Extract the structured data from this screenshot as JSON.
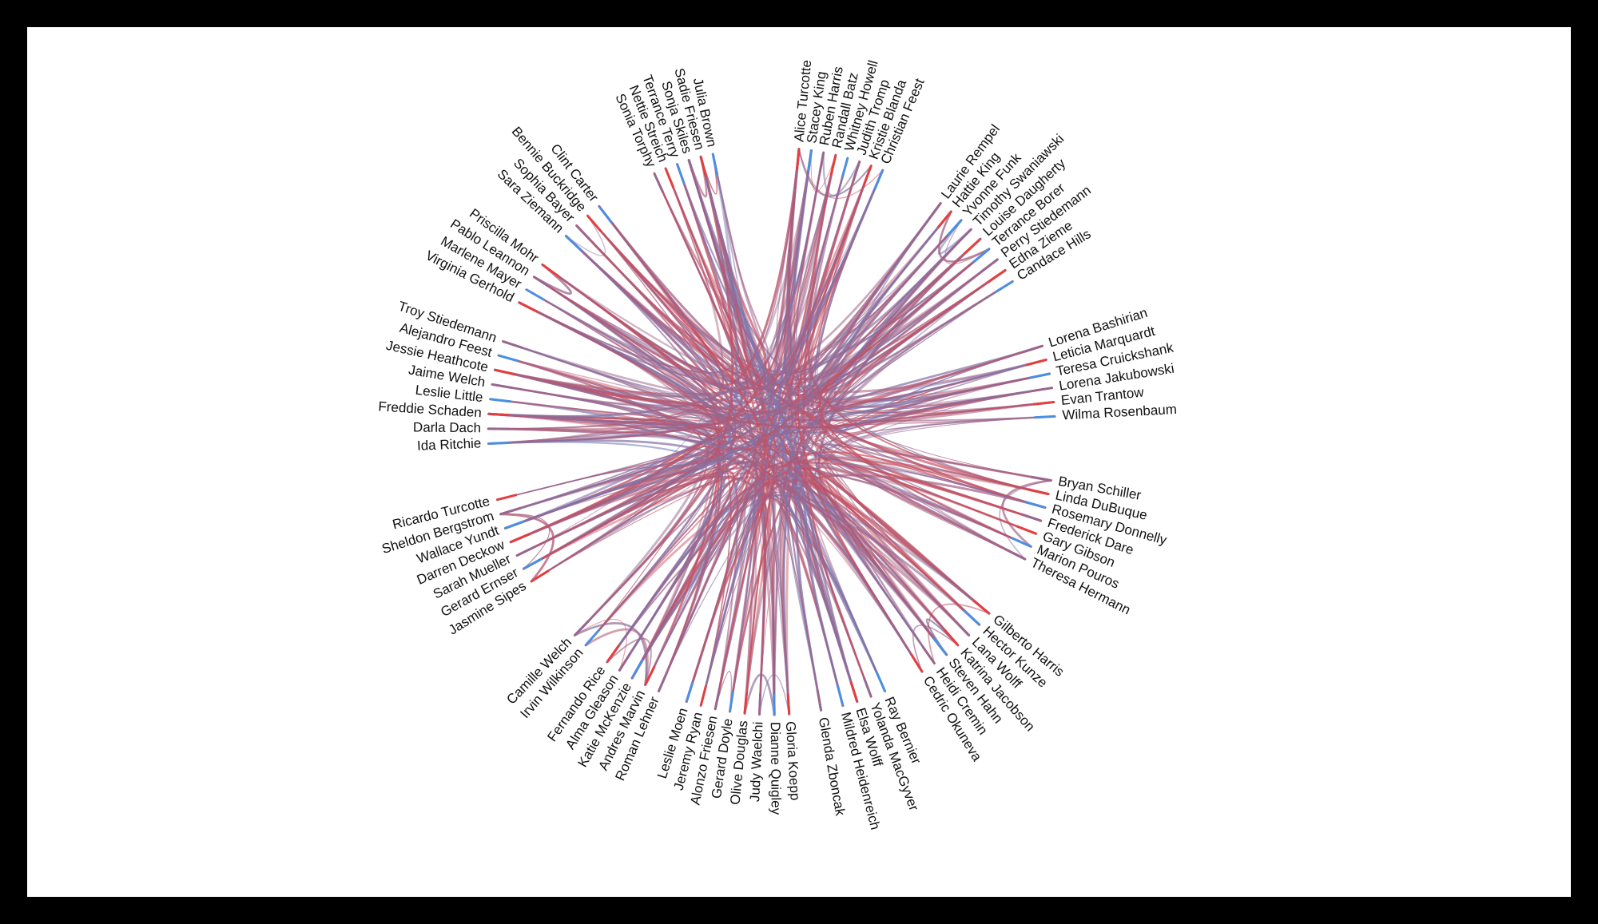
{
  "diagram": {
    "type": "hierarchical edge bundling",
    "colors": {
      "source": "#4a90e2",
      "target": "#e53e3e",
      "background": "#ffffff",
      "frame": "#000000"
    },
    "nodes": [
      "Alice Turcotte",
      "Stacey King",
      "Ruben Harris",
      "Randall Batz",
      "Whitney Howell",
      "Judith Tromp",
      "Kristie Blanda",
      "Christian Feest",
      "Laurie Rempel",
      "Hattie King",
      "Yvonne Funk",
      "Timothy Swaniawski",
      "Louise Daugherty",
      "Terrance Borer",
      "Perry Stiedemann",
      "Edna Zieme",
      "Candace Hills",
      "Lorena Bashirian",
      "Leticia Marquardt",
      "Teresa Cruickshank",
      "Lorena Jakubowski",
      "Evan Trantow",
      "Wilma Rosenbaum",
      "Bryan Schiller",
      "Linda DuBuque",
      "Rosemary Donnelly",
      "Frederick Dare",
      "Gary Gibson",
      "Marion Pouros",
      "Theresa Hermann",
      "Gilberto Harris",
      "Hector Kunze",
      "Lana Wolff",
      "Katrina Jacobson",
      "Steven Hahn",
      "Heidi Cremin",
      "Cedric Okuneva",
      "Ray Bernier",
      "Yolanda MacGyver",
      "Elsa Wolff",
      "Mildred Heidenreich",
      "Glenda Zboncak",
      "Gloria Koepp",
      "Dianne Quigley",
      "Judy Waelchi",
      "Olive Douglas",
      "Gerard Doyle",
      "Alonzo Friesen",
      "Jeremy Ryan",
      "Leslie Moen",
      "Roman Lehner",
      "Andres Marvin",
      "Katie McKenzie",
      "Alma Gleason",
      "Fernando Rice",
      "Irvin Wilkinson",
      "Camille Welch",
      "Jasmine Sipes",
      "Gerard Ernser",
      "Sarah Mueller",
      "Darren Deckow",
      "Wallace Yundt",
      "Sheldon Bergstrom",
      "Ricardo Turcotte",
      "Ida Ritchie",
      "Darla Dach",
      "Freddie Schaden",
      "Leslie Little",
      "Jaime Welch",
      "Jessie Heathcote",
      "Alejandro Feest",
      "Troy Stiedemann",
      "Virginia Gerhold",
      "Marlene Mayer",
      "Pablo Leannon",
      "Priscilla Mohr",
      "Sara Ziemann",
      "Sophia Bayer",
      "Bennie Buckridge",
      "Clint Carter",
      "Sonia Torphy",
      "Nettie Streich",
      "Terrance Terry",
      "Sonja Skiles",
      "Sadie Friesen",
      "Julia Brown"
    ],
    "angles": [
      -84.5,
      -82.0,
      -79.5,
      -77.0,
      -74.5,
      -72.0,
      -69.5,
      -67.0,
      -53.5,
      -50.8,
      -48.1,
      -45.4,
      -42.7,
      -40.0,
      -37.3,
      -34.6,
      -31.9,
      -17.5,
      -14.6,
      -11.7,
      -8.8,
      -5.9,
      -3.0,
      10.0,
      12.8,
      15.6,
      18.4,
      21.2,
      24.0,
      26.8,
      40.0,
      43.0,
      46.0,
      49.0,
      52.0,
      55.0,
      58.0,
      66.5,
      69.5,
      72.5,
      75.5,
      80.0,
      86.5,
      89.5,
      92.5,
      95.5,
      98.5,
      101.5,
      104.5,
      107.5,
      113.5,
      116.5,
      119.5,
      122.5,
      125.5,
      131.0,
      134.0,
      148.0,
      151.0,
      154.0,
      157.0,
      160.0,
      163.0,
      166.0,
      177.5,
      180.5,
      183.5,
      186.5,
      189.5,
      192.5,
      195.5,
      198.5,
      207.0,
      210.0,
      213.0,
      216.0,
      223.5,
      226.5,
      229.5,
      232.5,
      245.5,
      248.0,
      250.5,
      253.0,
      255.5,
      258.0
    ]
  }
}
